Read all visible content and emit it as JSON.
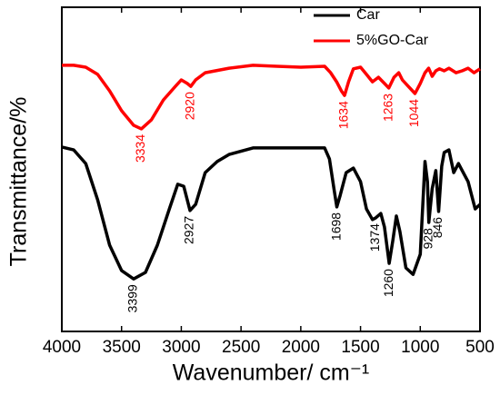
{
  "chart_data": {
    "type": "line",
    "x_label": "Wavenumber/ cm⁻¹",
    "y_label": "Transmittance/%",
    "xlim": [
      4000,
      500
    ],
    "ylim": [
      0,
      100
    ],
    "xticks": [
      4000,
      3500,
      3000,
      2500,
      2000,
      1500,
      1000,
      500
    ],
    "legend": "upper right",
    "series": [
      {
        "name": "Car",
        "color": "#000000",
        "x": [
          4000,
          3900,
          3800,
          3700,
          3600,
          3500,
          3399,
          3300,
          3200,
          3100,
          3030,
          2980,
          2927,
          2880,
          2800,
          2700,
          2600,
          2400,
          2200,
          2000,
          1800,
          1760,
          1720,
          1698,
          1670,
          1620,
          1560,
          1500,
          1450,
          1400,
          1374,
          1330,
          1300,
          1260,
          1230,
          1200,
          1170,
          1120,
          1060,
          1000,
          960,
          940,
          928,
          900,
          870,
          846,
          820,
          800,
          760,
          720,
          680,
          600,
          540,
          500
        ],
        "values": [
          56.9,
          56.0,
          51.8,
          40.6,
          26.6,
          18.8,
          16.2,
          18.2,
          26.6,
          37.8,
          45.4,
          44.8,
          37.3,
          39.2,
          49.0,
          52.4,
          54.6,
          56.6,
          56.6,
          56.6,
          56.6,
          53.2,
          43.4,
          38.4,
          42.0,
          49.0,
          50.4,
          46.2,
          37.8,
          34.5,
          35.0,
          36.4,
          32.2,
          21.0,
          28.0,
          35.6,
          30.8,
          19.6,
          17.6,
          23.8,
          52.4,
          46.2,
          33.6,
          44.0,
          49.6,
          37.0,
          51.0,
          55.2,
          56.0,
          49.0,
          51.8,
          46.2,
          37.8,
          39.2
        ]
      },
      {
        "name": "5%GO-Car",
        "color": "#ff0000",
        "x": [
          4000,
          3900,
          3800,
          3700,
          3600,
          3500,
          3400,
          3334,
          3250,
          3150,
          3050,
          3000,
          2950,
          2920,
          2880,
          2800,
          2600,
          2400,
          2200,
          2000,
          1800,
          1750,
          1700,
          1660,
          1634,
          1600,
          1560,
          1500,
          1450,
          1400,
          1350,
          1300,
          1263,
          1220,
          1180,
          1150,
          1100,
          1044,
          1000,
          960,
          930,
          900,
          870,
          840,
          800,
          760,
          700,
          650,
          600,
          550,
          500
        ],
        "values": [
          82.1,
          82.1,
          81.5,
          79.3,
          74.2,
          68.1,
          63.6,
          62.5,
          65.3,
          71.4,
          75.6,
          77.6,
          76.5,
          75.6,
          77.6,
          79.8,
          81.2,
          82.1,
          81.8,
          81.5,
          81.8,
          79.8,
          77.0,
          74.2,
          72.8,
          77.0,
          81.0,
          81.5,
          79.3,
          77.0,
          78.4,
          76.5,
          75.1,
          78.4,
          79.8,
          77.6,
          75.6,
          73.4,
          76.5,
          79.8,
          81.2,
          78.7,
          80.4,
          81.0,
          80.4,
          81.2,
          79.8,
          80.4,
          81.2,
          79.8,
          81.0
        ]
      }
    ],
    "annotations": [
      {
        "text": "3334",
        "x": 3334,
        "series": 1
      },
      {
        "text": "2920",
        "x": 2920,
        "series": 1
      },
      {
        "text": "1634",
        "x": 1634,
        "series": 1
      },
      {
        "text": "1263",
        "x": 1263,
        "series": 1
      },
      {
        "text": "1044",
        "x": 1044,
        "series": 1
      },
      {
        "text": "3399",
        "x": 3399,
        "series": 0
      },
      {
        "text": "2927",
        "x": 2927,
        "series": 0
      },
      {
        "text": "1698",
        "x": 1698,
        "series": 0
      },
      {
        "text": "1374",
        "x": 1374,
        "series": 0
      },
      {
        "text": "1260",
        "x": 1260,
        "series": 0
      },
      {
        "text": "928",
        "x": 928,
        "series": 0
      },
      {
        "text": "846",
        "x": 846,
        "series": 0
      }
    ]
  }
}
